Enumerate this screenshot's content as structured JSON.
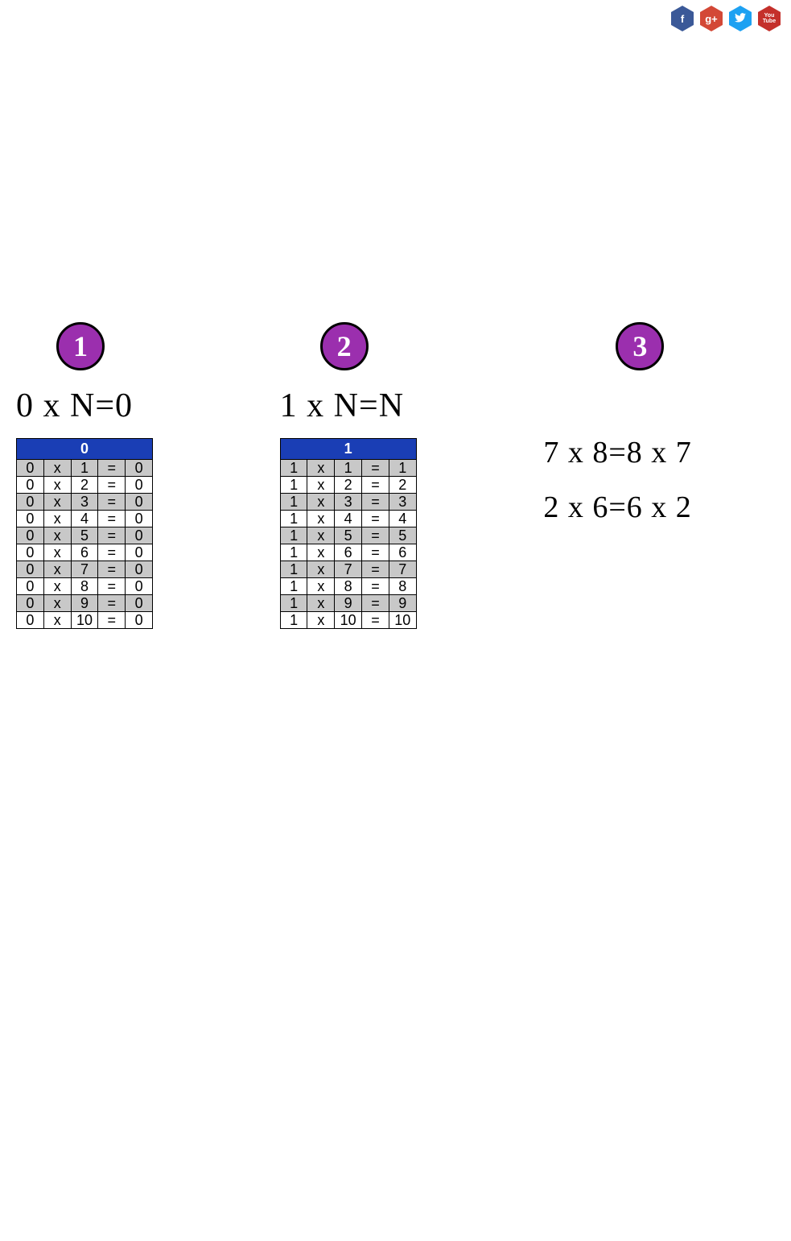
{
  "social": {
    "facebook": {
      "glyph": "f",
      "fill": "#3b5998"
    },
    "google": {
      "glyph": "g+",
      "fill": "#d34836"
    },
    "twitter": {
      "glyph": "t",
      "fill": "#1da1f2"
    },
    "youtube": {
      "glyph": "You\nTube",
      "fill": "#c4302b"
    }
  },
  "badge_bg": "#9b2fae",
  "table_header_bg": "#1a3eb5",
  "row_odd_bg": "#c8c8c8",
  "row_even_bg": "#ffffff",
  "sections": [
    {
      "badge": "1",
      "formula": "0 x N=0",
      "table": {
        "header": "0",
        "rows": [
          [
            "0",
            "x",
            "1",
            "=",
            "0"
          ],
          [
            "0",
            "x",
            "2",
            "=",
            "0"
          ],
          [
            "0",
            "x",
            "3",
            "=",
            "0"
          ],
          [
            "0",
            "x",
            "4",
            "=",
            "0"
          ],
          [
            "0",
            "x",
            "5",
            "=",
            "0"
          ],
          [
            "0",
            "x",
            "6",
            "=",
            "0"
          ],
          [
            "0",
            "x",
            "7",
            "=",
            "0"
          ],
          [
            "0",
            "x",
            "8",
            "=",
            "0"
          ],
          [
            "0",
            "x",
            "9",
            "=",
            "0"
          ],
          [
            "0",
            "x",
            "10",
            "=",
            "0"
          ]
        ]
      }
    },
    {
      "badge": "2",
      "formula": "1 x N=N",
      "table": {
        "header": "1",
        "rows": [
          [
            "1",
            "x",
            "1",
            "=",
            "1"
          ],
          [
            "1",
            "x",
            "2",
            "=",
            "2"
          ],
          [
            "1",
            "x",
            "3",
            "=",
            "3"
          ],
          [
            "1",
            "x",
            "4",
            "=",
            "4"
          ],
          [
            "1",
            "x",
            "5",
            "=",
            "5"
          ],
          [
            "1",
            "x",
            "6",
            "=",
            "6"
          ],
          [
            "1",
            "x",
            "7",
            "=",
            "7"
          ],
          [
            "1",
            "x",
            "8",
            "=",
            "8"
          ],
          [
            "1",
            "x",
            "9",
            "=",
            "9"
          ],
          [
            "1",
            "x",
            "10",
            "=",
            "10"
          ]
        ]
      }
    },
    {
      "badge": "3",
      "equations": [
        "7 x 8=8 x 7",
        "2 x 6=6 x 2"
      ]
    }
  ]
}
